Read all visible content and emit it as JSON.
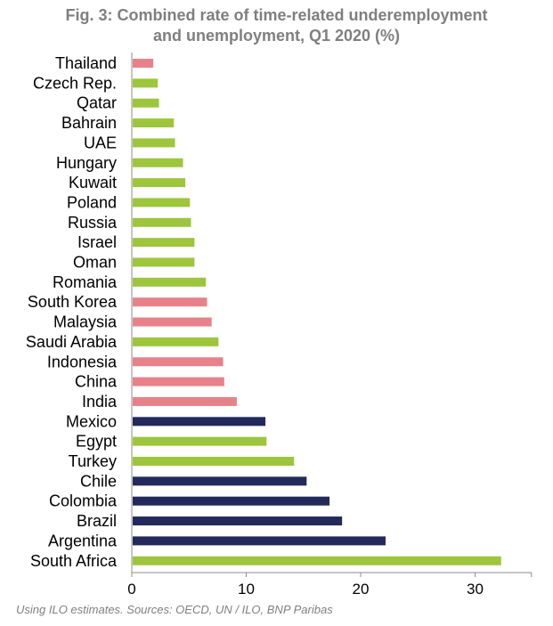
{
  "chart_data": {
    "type": "bar",
    "orientation": "horizontal",
    "title_line1": "Fig. 3: Combined rate of time-related underemployment",
    "title_line2": "and unemployment, Q1 2020 (%)",
    "xlabel": "",
    "ylabel": "",
    "xlim": [
      0,
      35
    ],
    "ticks": [
      0,
      10,
      20,
      30
    ],
    "grid": false,
    "source": "Using ILO estimates. Sources: OECD, UN / ILO, BNP Paribas",
    "colors": {
      "green": "#9dc63c",
      "pink": "#e8828a",
      "navy": "#232a5b"
    },
    "bars": [
      {
        "label": "Thailand",
        "value": 1.8,
        "color": "pink"
      },
      {
        "label": "Czech Rep.",
        "value": 2.2,
        "color": "green"
      },
      {
        "label": "Qatar",
        "value": 2.3,
        "color": "green"
      },
      {
        "label": "Bahrain",
        "value": 3.6,
        "color": "green"
      },
      {
        "label": "UAE",
        "value": 3.7,
        "color": "green"
      },
      {
        "label": "Hungary",
        "value": 4.4,
        "color": "green"
      },
      {
        "label": "Kuwait",
        "value": 4.6,
        "color": "green"
      },
      {
        "label": "Poland",
        "value": 5.0,
        "color": "green"
      },
      {
        "label": "Russia",
        "value": 5.1,
        "color": "green"
      },
      {
        "label": "Israel",
        "value": 5.4,
        "color": "green"
      },
      {
        "label": "Oman",
        "value": 5.4,
        "color": "green"
      },
      {
        "label": "Romania",
        "value": 6.4,
        "color": "green"
      },
      {
        "label": "South Korea",
        "value": 6.5,
        "color": "pink"
      },
      {
        "label": "Malaysia",
        "value": 6.9,
        "color": "pink"
      },
      {
        "label": "Saudi Arabia",
        "value": 7.5,
        "color": "green"
      },
      {
        "label": "Indonesia",
        "value": 7.9,
        "color": "pink"
      },
      {
        "label": "China",
        "value": 8.0,
        "color": "pink"
      },
      {
        "label": "India",
        "value": 9.1,
        "color": "pink"
      },
      {
        "label": "Mexico",
        "value": 11.6,
        "color": "navy"
      },
      {
        "label": "Egypt",
        "value": 11.7,
        "color": "green"
      },
      {
        "label": "Turkey",
        "value": 14.1,
        "color": "green"
      },
      {
        "label": "Chile",
        "value": 15.2,
        "color": "navy"
      },
      {
        "label": "Colombia",
        "value": 17.2,
        "color": "navy"
      },
      {
        "label": "Brazil",
        "value": 18.3,
        "color": "navy"
      },
      {
        "label": "Argentina",
        "value": 22.1,
        "color": "navy"
      },
      {
        "label": "South Africa",
        "value": 32.2,
        "color": "green"
      }
    ]
  }
}
